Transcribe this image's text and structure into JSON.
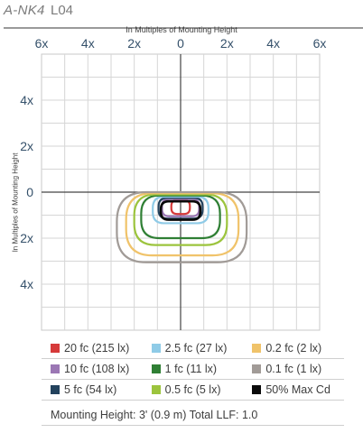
{
  "header": {
    "model": "A-NK4",
    "code": "L04"
  },
  "chart_data": {
    "type": "isofootcandle",
    "xlabel": "In Multiples of Mounting Height",
    "ylabel": "In Multiples of Mounting Height",
    "x_ticks": [
      "6x",
      "4x",
      "2x",
      "0",
      "2x",
      "4x",
      "6x"
    ],
    "x_tick_values": [
      -6,
      -4,
      -2,
      0,
      2,
      4,
      6
    ],
    "y_ticks": [
      "4x",
      "2x",
      "0",
      "2x",
      "4x"
    ],
    "y_tick_values": [
      4,
      2,
      0,
      -2,
      -4
    ],
    "xlim": [
      -6,
      6
    ],
    "ylim": [
      -6,
      6
    ],
    "grid": true,
    "series": [
      {
        "name": "20 fc (215 lx)",
        "color": "#d63a3a",
        "rx_left": 0.4,
        "rx_right": 0.4,
        "y_top": -0.35,
        "y_bottom": -0.95
      },
      {
        "name": "10 fc (108 lx)",
        "color": "#9b77b4",
        "rx_left": 0.8,
        "rx_right": 0.8,
        "y_top": -0.3,
        "y_bottom": -1.05
      },
      {
        "name": "5 fc (54 lx)",
        "color": "#23425d",
        "rx_left": 0.95,
        "rx_right": 0.95,
        "y_top": -0.25,
        "y_bottom": -1.15
      },
      {
        "name": "2.5 fc (27 lx)",
        "color": "#8fcbe7",
        "rx_left": 1.2,
        "rx_right": 1.2,
        "y_top": -0.2,
        "y_bottom": -1.35
      },
      {
        "name": "1 fc (11 lx)",
        "color": "#2f7f34",
        "rx_left": 1.7,
        "rx_right": 1.7,
        "y_top": -0.15,
        "y_bottom": -2.0
      },
      {
        "name": "0.5 fc (5 lx)",
        "color": "#9cc43d",
        "rx_left": 2.0,
        "rx_right": 2.0,
        "y_top": -0.1,
        "y_bottom": -2.3
      },
      {
        "name": "0.2 fc (2 lx)",
        "color": "#f0c36a",
        "rx_left": 2.35,
        "rx_right": 2.5,
        "y_top": -0.05,
        "y_bottom": -2.75
      },
      {
        "name": "0.1 fc (1 lx)",
        "color": "#a19b97",
        "rx_left": 2.75,
        "rx_right": 2.85,
        "y_top": 0.0,
        "y_bottom": -3.05
      },
      {
        "name": "50% Max Cd",
        "color": "#0a0a0a",
        "rx_left": 0.85,
        "rx_right": 0.85,
        "y_top": -0.4,
        "y_bottom": -1.2
      }
    ]
  },
  "legend": [
    [
      {
        "label": "20 fc (215 lx)",
        "color": "#d63a3a"
      },
      {
        "label": "2.5 fc (27 lx)",
        "color": "#8fcbe7"
      },
      {
        "label": "0.2 fc (2 lx)",
        "color": "#f0c36a"
      }
    ],
    [
      {
        "label": "10 fc (108 lx)",
        "color": "#9b77b4"
      },
      {
        "label": "1 fc (11 lx)",
        "color": "#2f7f34"
      },
      {
        "label": "0.1 fc (1 lx)",
        "color": "#a19b97"
      }
    ],
    [
      {
        "label": "5 fc (54 lx)",
        "color": "#23425d"
      },
      {
        "label": "0.5 fc (5 lx)",
        "color": "#9cc43d"
      },
      {
        "label": "50% Max Cd",
        "color": "#0a0a0a"
      }
    ]
  ],
  "mounting": "Mounting Height: 3' (0.9 m) Total LLF: 1.0"
}
